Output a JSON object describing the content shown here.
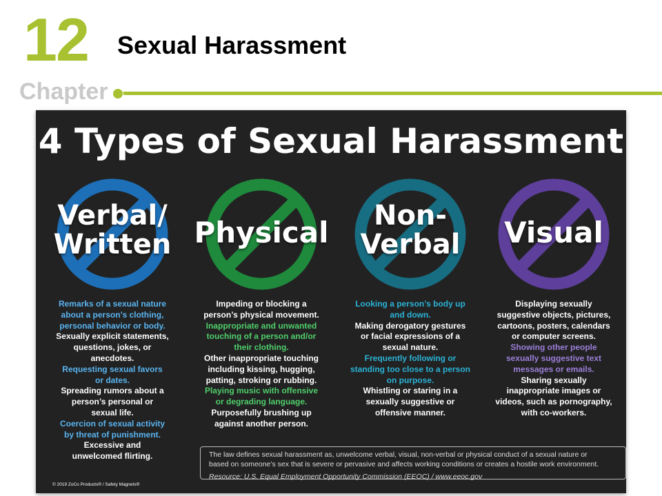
{
  "header": {
    "chapter_number": "12",
    "chapter_word": "Chapter",
    "slide_title": "Sexual Harassment",
    "accent_color": "#a7c130"
  },
  "poster": {
    "title": "4 Types of Sexual Harassment",
    "background": "#222222",
    "columns": [
      {
        "label_lines": [
          "Verbal/",
          "Written"
        ],
        "color": "#1d6fb8",
        "highlight": "#5ab4f0",
        "lines": [
          {
            "text": "Remarks of a sexual nature",
            "hl": true
          },
          {
            "text": "about a person’s clothing,",
            "hl": true
          },
          {
            "text": "personal behavior or body.",
            "hl": true
          },
          {
            "text": "Sexually explicit statements,",
            "hl": false
          },
          {
            "text": "questions, jokes, or",
            "hl": false
          },
          {
            "text": "anecdotes.",
            "hl": false
          },
          {
            "text": "Requesting sexual favors",
            "hl": true
          },
          {
            "text": "or dates.",
            "hl": true
          },
          {
            "text": "Spreading rumors about a",
            "hl": false
          },
          {
            "text": "person’s personal or",
            "hl": false
          },
          {
            "text": "sexual life.",
            "hl": false
          },
          {
            "text": "Coercion of sexual activity",
            "hl": true
          },
          {
            "text": "by threat of punishment.",
            "hl": true
          },
          {
            "text": "Excessive and",
            "hl": false
          },
          {
            "text": "unwelcomed flirting.",
            "hl": false
          }
        ]
      },
      {
        "label_lines": [
          "Physical"
        ],
        "color": "#1f8a3c",
        "highlight": "#4fcf6b",
        "lines": [
          {
            "text": "Impeding or blocking a",
            "hl": false
          },
          {
            "text": "person’s physical movement.",
            "hl": false
          },
          {
            "text": "Inappropriate and unwanted",
            "hl": true
          },
          {
            "text": "touching of a person and/or",
            "hl": true
          },
          {
            "text": "their clothing.",
            "hl": true
          },
          {
            "text": "Other inappropriate touching",
            "hl": false
          },
          {
            "text": "including kissing, hugging,",
            "hl": false
          },
          {
            "text": "patting, stroking or rubbing.",
            "hl": false
          },
          {
            "text": "Playing music with offensive",
            "hl": true
          },
          {
            "text": "or degrading language.",
            "hl": true
          },
          {
            "text": "Purposefully brushing up",
            "hl": false
          },
          {
            "text": "against another person.",
            "hl": false
          }
        ]
      },
      {
        "label_lines": [
          "Non-",
          "Verbal"
        ],
        "color": "#176d82",
        "highlight": "#2bb3d6",
        "lines": [
          {
            "text": "Looking a person’s body up",
            "hl": true
          },
          {
            "text": "and down.",
            "hl": true
          },
          {
            "text": "Making derogatory gestures",
            "hl": false
          },
          {
            "text": "or facial expressions of a",
            "hl": false
          },
          {
            "text": "sexual nature.",
            "hl": false
          },
          {
            "text": "Frequently following or",
            "hl": true
          },
          {
            "text": "standing too close to a person",
            "hl": true
          },
          {
            "text": "on purpose.",
            "hl": true
          },
          {
            "text": "Whistling or staring in a",
            "hl": false
          },
          {
            "text": "sexually suggestive or",
            "hl": false
          },
          {
            "text": "offensive manner.",
            "hl": false
          }
        ]
      },
      {
        "label_lines": [
          "Visual"
        ],
        "color": "#5e3f9c",
        "highlight": "#9b7fd8",
        "lines": [
          {
            "text": "Displaying sexually",
            "hl": false
          },
          {
            "text": "suggestive objects, pictures,",
            "hl": false
          },
          {
            "text": "cartoons, posters, calendars",
            "hl": false
          },
          {
            "text": "or computer screens.",
            "hl": false
          },
          {
            "text": "Showing other people",
            "hl": true
          },
          {
            "text": "sexually suggestive text",
            "hl": true
          },
          {
            "text": "messages or emails.",
            "hl": true
          },
          {
            "text": "Sharing sexually",
            "hl": false
          },
          {
            "text": "inappropriate images or",
            "hl": false
          },
          {
            "text": "videos, such as pornography,",
            "hl": false
          },
          {
            "text": "with co-workers.",
            "hl": false
          }
        ]
      }
    ],
    "footer": {
      "law_line1": "The law defines sexual harassment as, unwelcome verbal, visual, non-verbal or physical conduct of a sexual nature or",
      "law_line2": "based on someone’s sex that is severe or pervasive and affects working conditions or creates a hostile work environment.",
      "resource": "Resource: U.S. Equal Employment Opportunity Commission (EEOC) / www.eeoc.gov"
    },
    "copyright": "© 2019 ZoCo Products® / Safety Magnets®"
  }
}
